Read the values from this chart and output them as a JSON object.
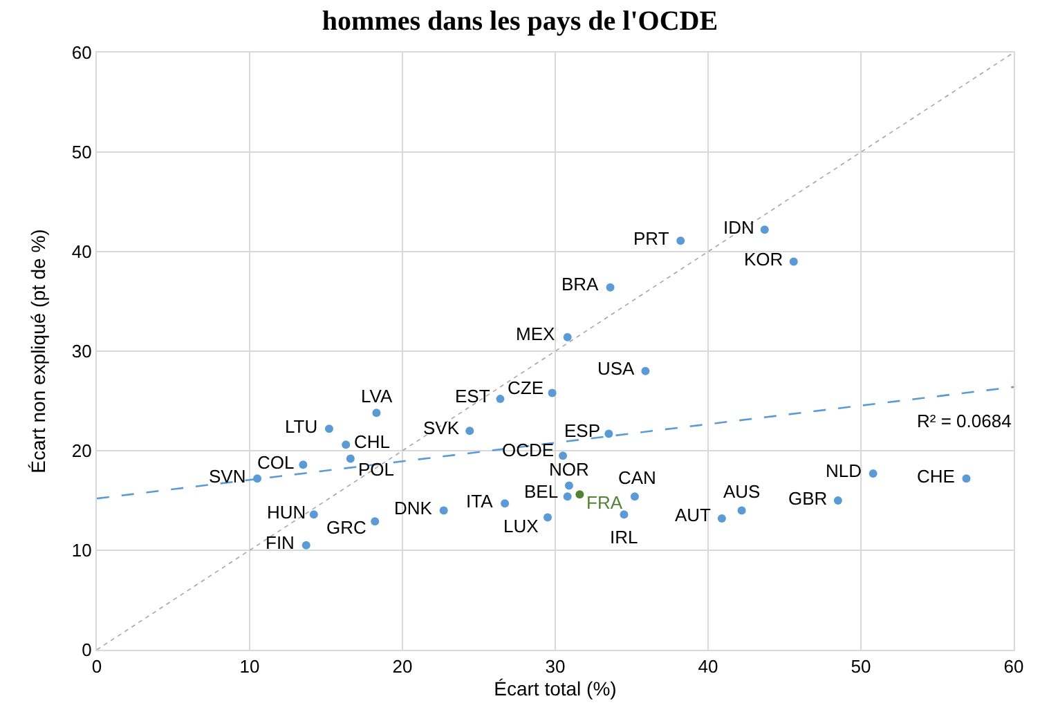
{
  "chart_data": {
    "type": "scatter",
    "title": "hommes dans les pays de l'OCDE",
    "xlabel": "Écart total (%)",
    "ylabel": "Écart non expliqué (pt de %)",
    "xlim": [
      0,
      60
    ],
    "ylim": [
      0,
      60
    ],
    "xticks": [
      0,
      10,
      20,
      30,
      40,
      50,
      60
    ],
    "yticks": [
      0,
      10,
      20,
      30,
      40,
      50,
      60
    ],
    "grid": true,
    "series": [
      {
        "marker": "circle",
        "x": [
          38.2,
          43.7,
          45.6,
          33.6,
          30.8,
          35.9,
          29.8,
          26.4,
          18.3,
          15.2,
          24.4,
          16.3,
          33.5,
          30.5,
          13.5,
          16.6,
          10.5,
          30.9,
          30.8,
          31.6,
          35.2,
          34.5,
          29.5,
          26.7,
          22.7,
          18.2,
          14.2,
          13.7,
          40.9,
          42.2,
          48.5,
          50.8,
          56.9
        ],
        "values": [
          41.1,
          42.2,
          39.0,
          36.4,
          31.4,
          28.0,
          25.8,
          25.2,
          23.8,
          22.2,
          22.0,
          20.6,
          21.7,
          19.5,
          18.6,
          19.2,
          17.2,
          16.5,
          15.4,
          15.6,
          15.4,
          13.6,
          13.3,
          14.7,
          14.0,
          12.9,
          13.6,
          10.5,
          13.2,
          14.0,
          15.0,
          17.7,
          17.2
        ],
        "color": "#5b9bd5",
        "colors": [
          "#5b9bd5",
          "#5b9bd5",
          "#5b9bd5",
          "#5b9bd5",
          "#5b9bd5",
          "#5b9bd5",
          "#5b9bd5",
          "#5b9bd5",
          "#5b9bd5",
          "#5b9bd5",
          "#5b9bd5",
          "#5b9bd5",
          "#5b9bd5",
          "#5b9bd5",
          "#5b9bd5",
          "#5b9bd5",
          "#5b9bd5",
          "#5b9bd5",
          "#5b9bd5",
          "#548235",
          "#5b9bd5",
          "#5b9bd5",
          "#5b9bd5",
          "#5b9bd5",
          "#5b9bd5",
          "#5b9bd5",
          "#5b9bd5",
          "#5b9bd5",
          "#5b9bd5",
          "#5b9bd5",
          "#5b9bd5",
          "#5b9bd5",
          "#5b9bd5"
        ]
      },
      {
        "type": "line",
        "x": [
          0,
          60
        ],
        "values": [
          0,
          60
        ],
        "color": "#a6a6a6",
        "line_style": "dotted"
      },
      {
        "type": "line",
        "x": [
          0,
          60
        ],
        "values": [
          15.2,
          26.4
        ],
        "color": "#5b9bd5",
        "line_style": "dashed"
      }
    ],
    "annotations": [
      {
        "text": "PRT",
        "x": 38.2,
        "y": 41.1
      },
      {
        "text": "IDN",
        "x": 43.7,
        "y": 42.2
      },
      {
        "text": "KOR",
        "x": 45.6,
        "y": 39.0
      },
      {
        "text": "BRA",
        "x": 33.6,
        "y": 36.4
      },
      {
        "text": "MEX",
        "x": 30.8,
        "y": 31.4
      },
      {
        "text": "USA",
        "x": 35.9,
        "y": 28.0
      },
      {
        "text": "CZE",
        "x": 29.8,
        "y": 25.8
      },
      {
        "text": "EST",
        "x": 26.4,
        "y": 25.2
      },
      {
        "text": "LVA",
        "x": 18.3,
        "y": 23.8
      },
      {
        "text": "LTU",
        "x": 15.2,
        "y": 22.2
      },
      {
        "text": "SVK",
        "x": 24.4,
        "y": 22.0
      },
      {
        "text": "CHL",
        "x": 16.3,
        "y": 20.6
      },
      {
        "text": "ESP",
        "x": 33.5,
        "y": 21.7
      },
      {
        "text": "OCDE",
        "x": 30.5,
        "y": 19.5
      },
      {
        "text": "COL",
        "x": 13.5,
        "y": 18.6
      },
      {
        "text": "POL",
        "x": 16.6,
        "y": 19.2
      },
      {
        "text": "SVN",
        "x": 10.5,
        "y": 17.2
      },
      {
        "text": "NOR",
        "x": 30.9,
        "y": 16.5
      },
      {
        "text": "BEL",
        "x": 30.8,
        "y": 15.4
      },
      {
        "text": "FRA",
        "x": 31.6,
        "y": 15.6
      },
      {
        "text": "CAN",
        "x": 35.2,
        "y": 15.4
      },
      {
        "text": "IRL",
        "x": 34.5,
        "y": 13.6
      },
      {
        "text": "LUX",
        "x": 29.5,
        "y": 13.3
      },
      {
        "text": "ITA",
        "x": 26.7,
        "y": 14.7
      },
      {
        "text": "DNK",
        "x": 22.7,
        "y": 14.0
      },
      {
        "text": "GRC",
        "x": 18.2,
        "y": 12.9
      },
      {
        "text": "HUN",
        "x": 14.2,
        "y": 13.6
      },
      {
        "text": "FIN",
        "x": 13.7,
        "y": 10.5
      },
      {
        "text": "AUT",
        "x": 40.9,
        "y": 13.2
      },
      {
        "text": "AUS",
        "x": 42.2,
        "y": 14.0
      },
      {
        "text": "GBR",
        "x": 48.5,
        "y": 15.0
      },
      {
        "text": "NLD",
        "x": 50.8,
        "y": 17.7
      },
      {
        "text": "CHE",
        "x": 56.9,
        "y": 17.2
      },
      "R² = 0.0684"
    ]
  }
}
